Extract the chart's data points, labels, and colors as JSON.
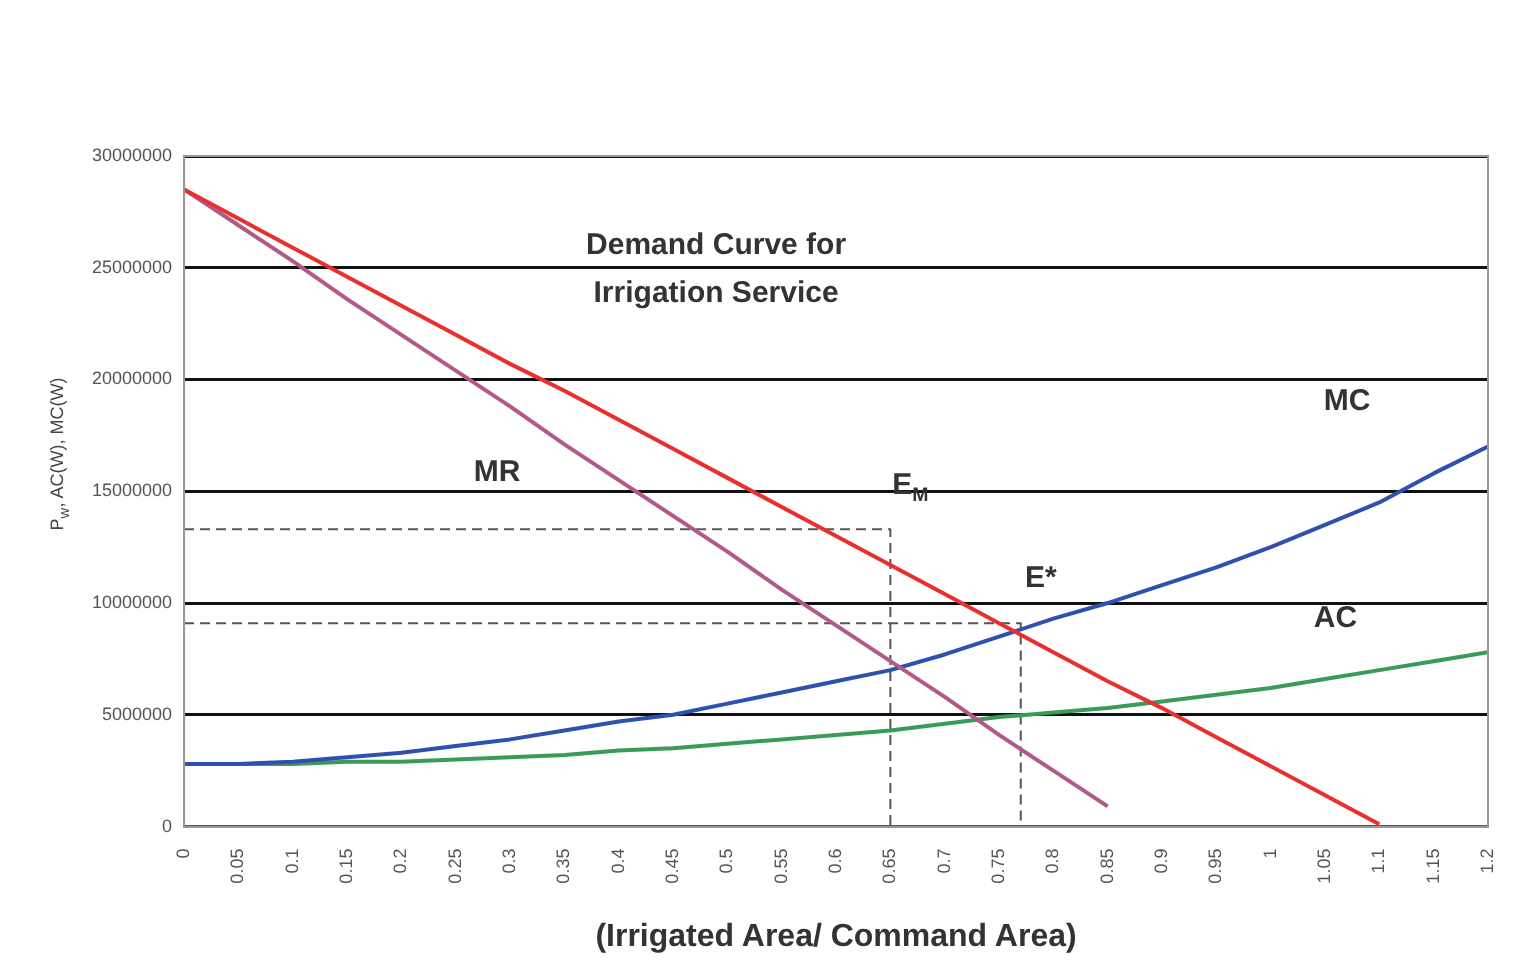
{
  "chart_data": {
    "type": "line",
    "xlabel": "(Irrigated Area/ Command Area)",
    "ylabel": "P$_{w}$, AC(W), MC(W)",
    "x": [
      0,
      0.05,
      0.1,
      0.15,
      0.2,
      0.25,
      0.3,
      0.35,
      0.4,
      0.45,
      0.5,
      0.55,
      0.6,
      0.65,
      0.7,
      0.75,
      0.8,
      0.85,
      0.9,
      0.95,
      1,
      1.05,
      1.1,
      1.15,
      1.2
    ],
    "series": [
      {
        "name": "Demand Curve for Irrigation Service",
        "color": "#e8312f",
        "values": [
          28500000,
          27200000,
          25900000,
          24600000,
          23300000,
          22000000,
          20700000,
          19500000,
          18200000,
          16900000,
          15600000,
          14300000,
          13000000,
          11700000,
          10400000,
          9100000,
          7800000,
          6500000,
          5300000,
          4000000,
          2700000,
          1400000,
          100000,
          null,
          null
        ]
      },
      {
        "name": "MR",
        "color": "#b05a8a",
        "values": [
          28500000,
          26900000,
          25300000,
          23600000,
          22000000,
          20400000,
          18800000,
          17100000,
          15500000,
          13900000,
          12300000,
          10600000,
          9000000,
          7400000,
          5800000,
          4100000,
          2500000,
          900000,
          null,
          null,
          null,
          null,
          null,
          null,
          null
        ]
      },
      {
        "name": "MC",
        "color": "#3050b0",
        "values": [
          2800000,
          2800000,
          2900000,
          3100000,
          3300000,
          3600000,
          3900000,
          4300000,
          4700000,
          5000000,
          5500000,
          6000000,
          6500000,
          7000000,
          7700000,
          8500000,
          9300000,
          10000000,
          10800000,
          11600000,
          12500000,
          13500000,
          14500000,
          15800000,
          17000000
        ]
      },
      {
        "name": "AC",
        "color": "#3a9a5a",
        "values": [
          2800000,
          2800000,
          2800000,
          2900000,
          2900000,
          3000000,
          3100000,
          3200000,
          3400000,
          3500000,
          3700000,
          3900000,
          4100000,
          4300000,
          4600000,
          4900000,
          5100000,
          5300000,
          5600000,
          5900000,
          6200000,
          6600000,
          7000000,
          7400000,
          7800000
        ]
      },
      {
        "color": "#555555",
        "line_style": "dashed",
        "x": [
          0,
          0.65,
          0.65
        ],
        "values": [
          13300000,
          13300000,
          0
        ]
      },
      {
        "color": "#555555",
        "line_style": "dashed",
        "x": [
          0,
          0.77,
          0.77
        ],
        "values": [
          9100000,
          9100000,
          0
        ]
      }
    ],
    "xlim": [
      0,
      1.2
    ],
    "xticks": [
      0,
      0.05,
      0.1,
      0.15,
      0.2,
      0.25,
      0.3,
      0.35,
      0.4,
      0.45,
      0.5,
      0.55,
      0.6,
      0.65,
      0.7,
      0.75,
      0.8,
      0.85,
      0.9,
      0.95,
      1,
      1.05,
      1.1,
      1.15,
      1.2
    ],
    "ylim": [
      0,
      30000000
    ],
    "yticks": [
      0,
      5000000,
      10000000,
      15000000,
      20000000,
      25000000,
      30000000
    ],
    "grid": "y",
    "legend": false,
    "marker": "none",
    "annotations": [
      {
        "text": "E$_{M}$",
        "x": 0.65,
        "y": 13300000
      },
      {
        "text": "E*",
        "x": 0.77,
        "y": 9100000
      }
    ]
  }
}
